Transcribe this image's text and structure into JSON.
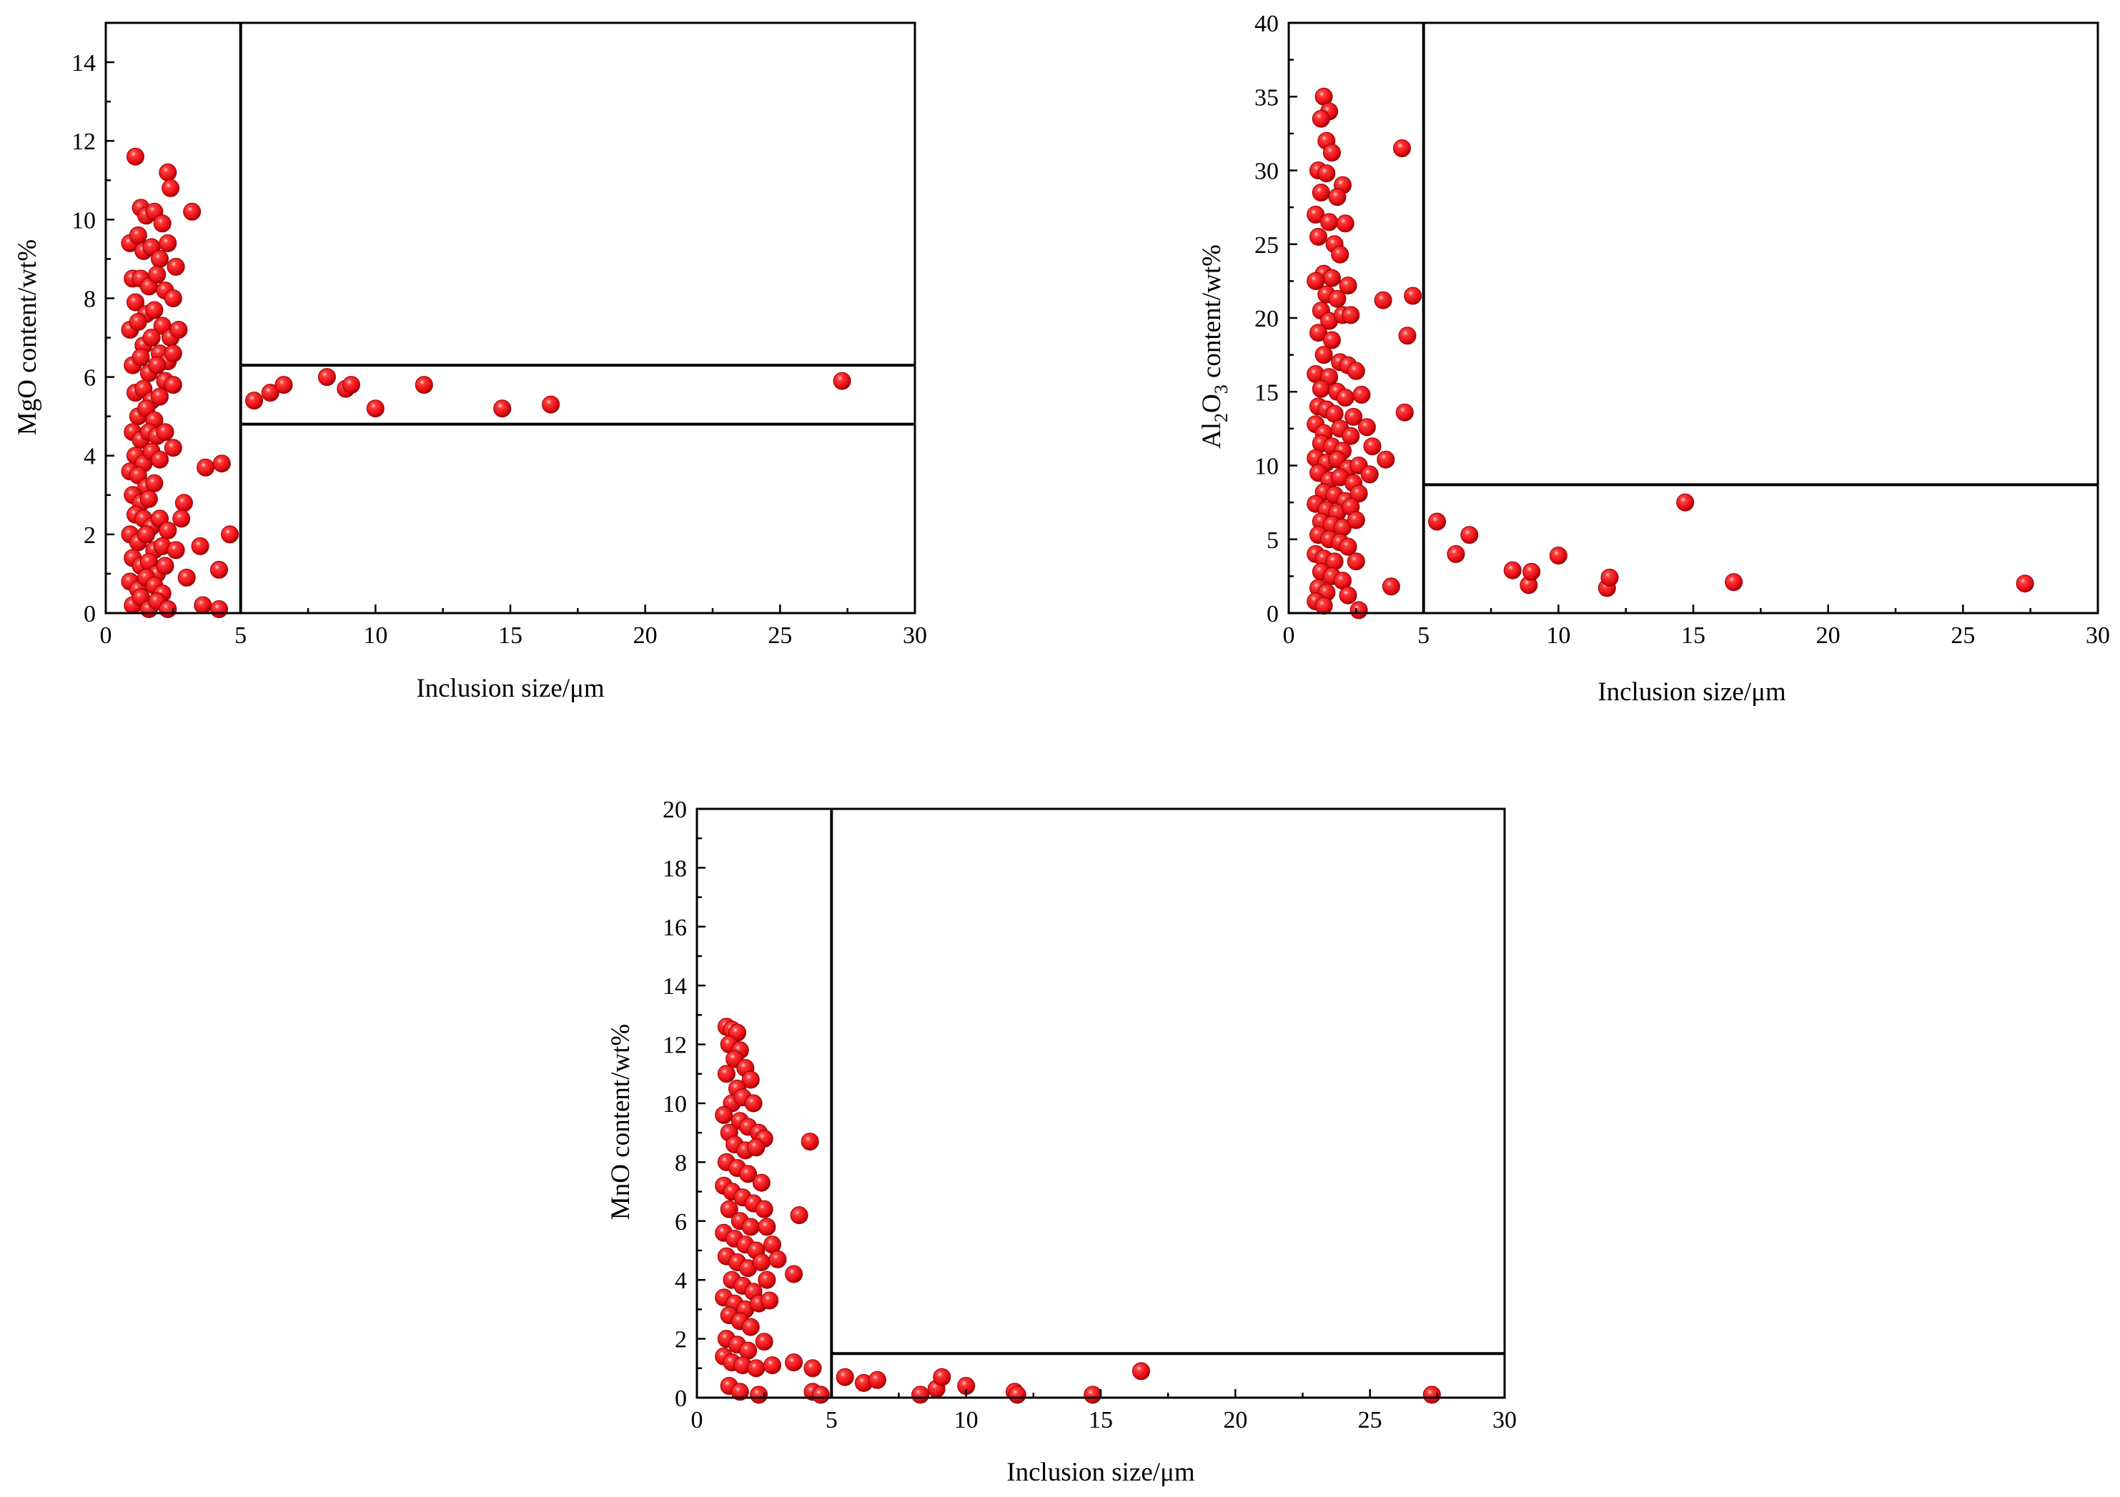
{
  "marker_color": "#e8101a",
  "marker_edge_color": "#9a0000",
  "chart_data": [
    {
      "id": "mgo",
      "type": "scatter",
      "title": "",
      "xlabel": "Inclusion size/μm",
      "ylabel": "MgO content/wt%",
      "xlim": [
        0,
        30
      ],
      "ylim": [
        0,
        15
      ],
      "xticks": [
        0,
        5,
        10,
        15,
        20,
        25,
        30
      ],
      "yticks": [
        0,
        2,
        4,
        6,
        8,
        10,
        12,
        14
      ],
      "vlines": [
        5
      ],
      "hlines": [
        {
          "y": 6.3,
          "from": 5,
          "to": 30
        },
        {
          "y": 4.8,
          "from": 5,
          "to": 30
        }
      ],
      "points": [
        [
          1.1,
          11.6
        ],
        [
          1.3,
          10.3
        ],
        [
          1.5,
          10.1
        ],
        [
          1.8,
          10.2
        ],
        [
          2.1,
          9.9
        ],
        [
          2.3,
          11.2
        ],
        [
          2.4,
          10.8
        ],
        [
          3.2,
          10.2
        ],
        [
          0.9,
          9.4
        ],
        [
          1.2,
          9.6
        ],
        [
          1.4,
          9.2
        ],
        [
          1.7,
          9.3
        ],
        [
          2.0,
          9.0
        ],
        [
          2.3,
          9.4
        ],
        [
          2.6,
          8.8
        ],
        [
          1.0,
          8.5
        ],
        [
          1.3,
          8.5
        ],
        [
          1.6,
          8.3
        ],
        [
          1.9,
          8.6
        ],
        [
          2.2,
          8.2
        ],
        [
          2.5,
          8.0
        ],
        [
          1.1,
          7.9
        ],
        [
          1.5,
          7.6
        ],
        [
          1.8,
          7.7
        ],
        [
          2.1,
          7.3
        ],
        [
          2.4,
          7.0
        ],
        [
          2.7,
          7.2
        ],
        [
          0.9,
          7.2
        ],
        [
          1.2,
          7.4
        ],
        [
          1.4,
          6.8
        ],
        [
          1.7,
          7.0
        ],
        [
          2.0,
          6.6
        ],
        [
          2.3,
          6.4
        ],
        [
          2.5,
          6.6
        ],
        [
          1.0,
          6.3
        ],
        [
          1.3,
          6.5
        ],
        [
          1.6,
          6.1
        ],
        [
          1.9,
          6.3
        ],
        [
          2.2,
          5.9
        ],
        [
          2.5,
          5.8
        ],
        [
          1.1,
          5.6
        ],
        [
          1.4,
          5.7
        ],
        [
          1.7,
          5.4
        ],
        [
          2.0,
          5.5
        ],
        [
          1.2,
          5.0
        ],
        [
          1.5,
          5.2
        ],
        [
          1.8,
          4.9
        ],
        [
          1.0,
          4.6
        ],
        [
          1.3,
          4.4
        ],
        [
          1.6,
          4.6
        ],
        [
          1.9,
          4.5
        ],
        [
          2.2,
          4.6
        ],
        [
          2.5,
          4.2
        ],
        [
          1.1,
          4.0
        ],
        [
          1.4,
          3.8
        ],
        [
          1.7,
          4.1
        ],
        [
          2.0,
          3.9
        ],
        [
          0.9,
          3.6
        ],
        [
          1.2,
          3.5
        ],
        [
          1.5,
          3.2
        ],
        [
          1.8,
          3.3
        ],
        [
          1.0,
          3.0
        ],
        [
          1.3,
          2.8
        ],
        [
          1.6,
          2.9
        ],
        [
          2.9,
          2.8
        ],
        [
          1.1,
          2.5
        ],
        [
          1.4,
          2.4
        ],
        [
          1.7,
          2.2
        ],
        [
          2.0,
          2.4
        ],
        [
          2.3,
          2.1
        ],
        [
          2.8,
          2.4
        ],
        [
          0.9,
          2.0
        ],
        [
          1.2,
          1.8
        ],
        [
          1.5,
          2.0
        ],
        [
          1.8,
          1.6
        ],
        [
          2.1,
          1.7
        ],
        [
          2.6,
          1.6
        ],
        [
          1.0,
          1.4
        ],
        [
          1.3,
          1.2
        ],
        [
          1.6,
          1.3
        ],
        [
          1.9,
          1.0
        ],
        [
          2.2,
          1.2
        ],
        [
          0.9,
          0.8
        ],
        [
          1.2,
          0.6
        ],
        [
          1.5,
          0.9
        ],
        [
          1.8,
          0.7
        ],
        [
          2.1,
          0.5
        ],
        [
          3.0,
          0.9
        ],
        [
          1.0,
          0.2
        ],
        [
          1.3,
          0.4
        ],
        [
          1.6,
          0.1
        ],
        [
          1.9,
          0.3
        ],
        [
          2.3,
          0.1
        ],
        [
          3.7,
          3.7
        ],
        [
          4.3,
          3.8
        ],
        [
          3.5,
          1.7
        ],
        [
          4.6,
          2.0
        ],
        [
          4.2,
          1.1
        ],
        [
          3.6,
          0.2
        ],
        [
          4.2,
          0.1
        ],
        [
          5.5,
          5.4
        ],
        [
          6.1,
          5.6
        ],
        [
          6.6,
          5.8
        ],
        [
          8.2,
          6.0
        ],
        [
          8.9,
          5.7
        ],
        [
          9.1,
          5.8
        ],
        [
          10.0,
          5.2
        ],
        [
          11.8,
          5.8
        ],
        [
          14.7,
          5.2
        ],
        [
          16.5,
          5.3
        ],
        [
          27.3,
          5.9
        ]
      ]
    },
    {
      "id": "al2o3",
      "type": "scatter",
      "title": "",
      "xlabel": "Inclusion size/μm",
      "ylabel": "Al2O3 content/wt%",
      "ylabel_parts": [
        "Al",
        "2",
        "O",
        "3",
        " content/wt%"
      ],
      "xlim": [
        0,
        30
      ],
      "ylim": [
        0,
        40
      ],
      "xticks": [
        0,
        5,
        10,
        15,
        20,
        25,
        30
      ],
      "yticks": [
        0,
        5,
        10,
        15,
        20,
        25,
        30,
        35,
        40
      ],
      "vlines": [
        5
      ],
      "hlines": [
        {
          "y": 8.7,
          "from": 5,
          "to": 30
        }
      ],
      "points": [
        [
          1.3,
          35.0
        ],
        [
          1.5,
          34.0
        ],
        [
          1.2,
          33.5
        ],
        [
          1.4,
          32.0
        ],
        [
          1.6,
          31.2
        ],
        [
          1.1,
          30.0
        ],
        [
          1.4,
          29.8
        ],
        [
          2.0,
          29.0
        ],
        [
          1.2,
          28.5
        ],
        [
          1.8,
          28.2
        ],
        [
          1.0,
          27.0
        ],
        [
          1.5,
          26.5
        ],
        [
          2.1,
          26.4
        ],
        [
          1.1,
          25.5
        ],
        [
          1.7,
          25.0
        ],
        [
          1.9,
          24.3
        ],
        [
          1.3,
          23.0
        ],
        [
          1.6,
          22.7
        ],
        [
          2.2,
          22.2
        ],
        [
          1.0,
          22.5
        ],
        [
          1.4,
          21.6
        ],
        [
          1.8,
          21.3
        ],
        [
          1.2,
          20.5
        ],
        [
          1.5,
          19.8
        ],
        [
          2.0,
          20.2
        ],
        [
          2.3,
          20.2
        ],
        [
          1.1,
          19.0
        ],
        [
          1.6,
          18.5
        ],
        [
          1.3,
          17.5
        ],
        [
          1.9,
          17.0
        ],
        [
          2.2,
          16.8
        ],
        [
          1.0,
          16.2
        ],
        [
          1.5,
          16.0
        ],
        [
          2.5,
          16.4
        ],
        [
          1.2,
          15.2
        ],
        [
          1.8,
          15.0
        ],
        [
          2.1,
          14.6
        ],
        [
          2.7,
          14.8
        ],
        [
          1.1,
          14.0
        ],
        [
          1.4,
          13.8
        ],
        [
          1.7,
          13.5
        ],
        [
          2.4,
          13.3
        ],
        [
          1.0,
          12.8
        ],
        [
          1.3,
          12.2
        ],
        [
          1.9,
          12.5
        ],
        [
          2.3,
          12.0
        ],
        [
          2.9,
          12.6
        ],
        [
          1.2,
          11.5
        ],
        [
          1.6,
          11.3
        ],
        [
          2.0,
          11.0
        ],
        [
          3.1,
          11.3
        ],
        [
          1.0,
          10.5
        ],
        [
          1.4,
          10.2
        ],
        [
          1.8,
          10.4
        ],
        [
          2.2,
          9.8
        ],
        [
          2.6,
          10.0
        ],
        [
          1.1,
          9.5
        ],
        [
          1.5,
          9.0
        ],
        [
          1.9,
          9.2
        ],
        [
          2.4,
          8.8
        ],
        [
          3.0,
          9.4
        ],
        [
          1.3,
          8.2
        ],
        [
          1.7,
          8.0
        ],
        [
          2.1,
          7.6
        ],
        [
          2.6,
          8.1
        ],
        [
          1.0,
          7.4
        ],
        [
          1.4,
          7.0
        ],
        [
          1.8,
          6.8
        ],
        [
          2.3,
          7.2
        ],
        [
          1.2,
          6.2
        ],
        [
          1.6,
          6.0
        ],
        [
          2.0,
          5.8
        ],
        [
          2.5,
          6.3
        ],
        [
          1.1,
          5.3
        ],
        [
          1.5,
          5.0
        ],
        [
          1.9,
          4.8
        ],
        [
          2.2,
          4.5
        ],
        [
          1.0,
          4.0
        ],
        [
          1.3,
          3.7
        ],
        [
          1.7,
          3.5
        ],
        [
          2.5,
          3.5
        ],
        [
          1.2,
          2.8
        ],
        [
          1.6,
          2.5
        ],
        [
          2.0,
          2.2
        ],
        [
          1.1,
          1.7
        ],
        [
          1.4,
          1.4
        ],
        [
          2.2,
          1.2
        ],
        [
          1.0,
          0.8
        ],
        [
          1.3,
          0.5
        ],
        [
          2.6,
          0.2
        ],
        [
          3.5,
          21.2
        ],
        [
          4.6,
          21.5
        ],
        [
          4.2,
          31.5
        ],
        [
          4.4,
          18.8
        ],
        [
          3.6,
          10.4
        ],
        [
          4.3,
          13.6
        ],
        [
          3.8,
          1.8
        ],
        [
          5.5,
          6.2
        ],
        [
          6.2,
          4.0
        ],
        [
          6.7,
          5.3
        ],
        [
          8.3,
          2.9
        ],
        [
          8.9,
          1.9
        ],
        [
          9.0,
          2.8
        ],
        [
          10.0,
          3.9
        ],
        [
          11.8,
          1.7
        ],
        [
          11.9,
          2.4
        ],
        [
          14.7,
          7.5
        ],
        [
          16.5,
          2.1
        ],
        [
          27.3,
          2.0
        ]
      ]
    },
    {
      "id": "mno",
      "type": "scatter",
      "title": "",
      "xlabel": "Inclusion size/μm",
      "ylabel": "MnO content/wt%",
      "xlim": [
        0,
        30
      ],
      "ylim": [
        0,
        20
      ],
      "xticks": [
        0,
        5,
        10,
        15,
        20,
        25,
        30
      ],
      "yticks": [
        0,
        2,
        4,
        6,
        8,
        10,
        12,
        14,
        16,
        18,
        20
      ],
      "vlines": [
        5
      ],
      "hlines": [
        {
          "y": 1.5,
          "from": 5,
          "to": 30
        }
      ],
      "points": [
        [
          1.1,
          12.6
        ],
        [
          1.3,
          12.5
        ],
        [
          1.5,
          12.4
        ],
        [
          1.2,
          12.0
        ],
        [
          1.6,
          11.8
        ],
        [
          1.4,
          11.5
        ],
        [
          1.8,
          11.2
        ],
        [
          1.1,
          11.0
        ],
        [
          2.0,
          10.8
        ],
        [
          1.5,
          10.5
        ],
        [
          1.3,
          10.0
        ],
        [
          1.7,
          10.2
        ],
        [
          2.1,
          10.0
        ],
        [
          1.0,
          9.6
        ],
        [
          1.6,
          9.4
        ],
        [
          1.9,
          9.2
        ],
        [
          2.3,
          9.0
        ],
        [
          2.5,
          8.8
        ],
        [
          1.2,
          9.0
        ],
        [
          1.4,
          8.6
        ],
        [
          1.8,
          8.4
        ],
        [
          2.2,
          8.5
        ],
        [
          1.1,
          8.0
        ],
        [
          1.5,
          7.8
        ],
        [
          1.9,
          7.6
        ],
        [
          2.4,
          7.3
        ],
        [
          1.0,
          7.2
        ],
        [
          1.3,
          7.0
        ],
        [
          1.7,
          6.8
        ],
        [
          2.1,
          6.6
        ],
        [
          2.5,
          6.4
        ],
        [
          1.2,
          6.4
        ],
        [
          1.6,
          6.0
        ],
        [
          2.0,
          5.8
        ],
        [
          2.6,
          5.8
        ],
        [
          1.0,
          5.6
        ],
        [
          1.4,
          5.4
        ],
        [
          1.8,
          5.2
        ],
        [
          2.2,
          5.0
        ],
        [
          2.8,
          5.2
        ],
        [
          1.1,
          4.8
        ],
        [
          1.5,
          4.6
        ],
        [
          1.9,
          4.4
        ],
        [
          2.4,
          4.6
        ],
        [
          3.0,
          4.7
        ],
        [
          1.3,
          4.0
        ],
        [
          1.7,
          3.8
        ],
        [
          2.1,
          3.6
        ],
        [
          2.6,
          4.0
        ],
        [
          1.0,
          3.4
        ],
        [
          1.4,
          3.2
        ],
        [
          1.8,
          3.0
        ],
        [
          2.3,
          3.2
        ],
        [
          2.7,
          3.3
        ],
        [
          1.2,
          2.8
        ],
        [
          1.6,
          2.6
        ],
        [
          2.0,
          2.4
        ],
        [
          1.1,
          2.0
        ],
        [
          1.5,
          1.8
        ],
        [
          1.9,
          1.6
        ],
        [
          2.5,
          1.9
        ],
        [
          1.0,
          1.4
        ],
        [
          1.3,
          1.2
        ],
        [
          1.7,
          1.1
        ],
        [
          2.2,
          1.0
        ],
        [
          2.8,
          1.1
        ],
        [
          1.2,
          0.4
        ],
        [
          1.6,
          0.2
        ],
        [
          2.3,
          0.1
        ],
        [
          4.2,
          8.7
        ],
        [
          3.8,
          6.2
        ],
        [
          3.6,
          4.2
        ],
        [
          3.6,
          1.2
        ],
        [
          4.3,
          1.0
        ],
        [
          4.3,
          0.2
        ],
        [
          4.6,
          0.1
        ],
        [
          5.5,
          0.7
        ],
        [
          6.2,
          0.5
        ],
        [
          6.7,
          0.6
        ],
        [
          8.3,
          0.1
        ],
        [
          8.9,
          0.3
        ],
        [
          9.1,
          0.7
        ],
        [
          10.0,
          0.4
        ],
        [
          11.8,
          0.2
        ],
        [
          11.9,
          0.1
        ],
        [
          14.7,
          0.1
        ],
        [
          16.5,
          0.9
        ],
        [
          27.3,
          0.1
        ]
      ]
    }
  ]
}
